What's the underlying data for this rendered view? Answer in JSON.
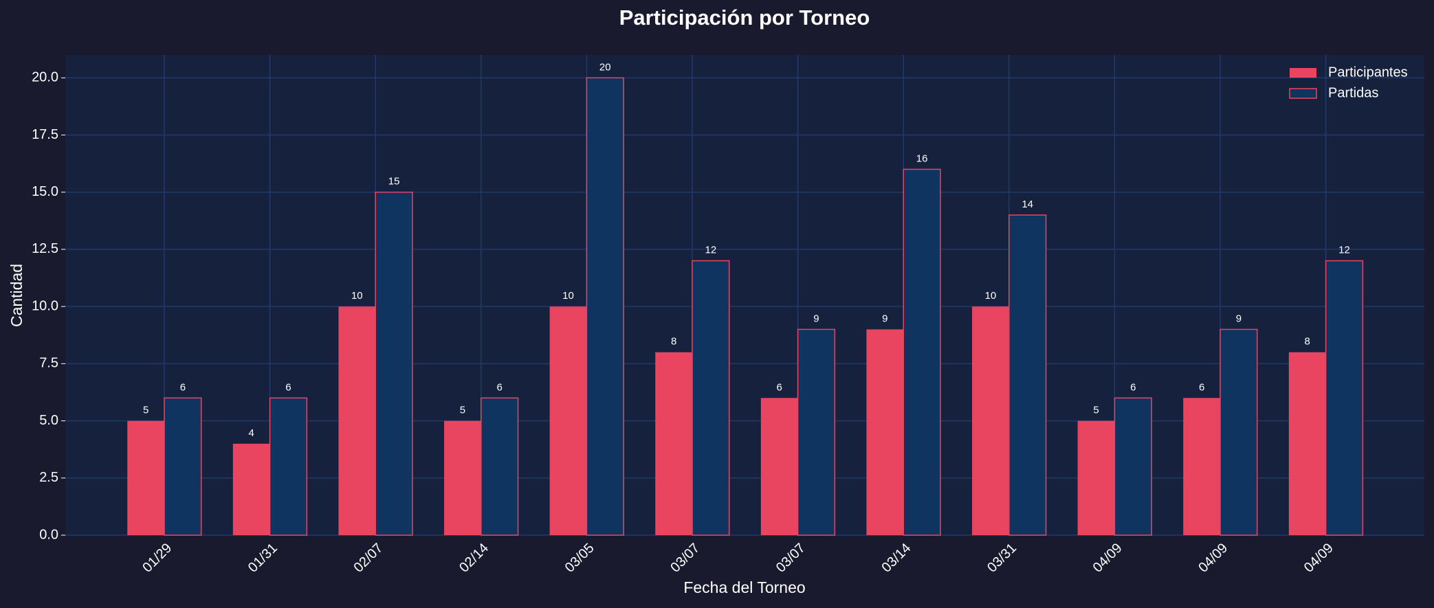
{
  "chart_data": {
    "type": "bar",
    "title": "Participación por Torneo",
    "x_label": "Fecha del Torneo",
    "y_label": "Cantidad",
    "categories": [
      "01/29",
      "01/31",
      "02/07",
      "02/14",
      "03/05",
      "03/07",
      "03/07",
      "03/14",
      "03/31",
      "04/09",
      "04/09",
      "04/09"
    ],
    "series": [
      {
        "name": "Participantes",
        "color": "#e94560",
        "values": [
          5,
          4,
          10,
          5,
          10,
          8,
          6,
          9,
          10,
          5,
          6,
          8
        ]
      },
      {
        "name": "Partidas",
        "color": "#0f3460",
        "edge_color": "#e94560",
        "values": [
          6,
          6,
          15,
          6,
          20,
          12,
          9,
          16,
          14,
          6,
          9,
          12
        ]
      }
    ],
    "ylim": [
      0,
      21
    ],
    "yticks": [
      {
        "value": 0,
        "label": "0.0"
      },
      {
        "value": 2.5,
        "label": "2.5"
      },
      {
        "value": 5,
        "label": "5.0"
      },
      {
        "value": 7.5,
        "label": "7.5"
      },
      {
        "value": 10,
        "label": "10.0"
      },
      {
        "value": 12.5,
        "label": "12.5"
      },
      {
        "value": 15,
        "label": "15.0"
      },
      {
        "value": 17.5,
        "label": "17.5"
      },
      {
        "value": 20,
        "label": "20.0"
      }
    ],
    "grid": true,
    "legend": "upper right"
  }
}
